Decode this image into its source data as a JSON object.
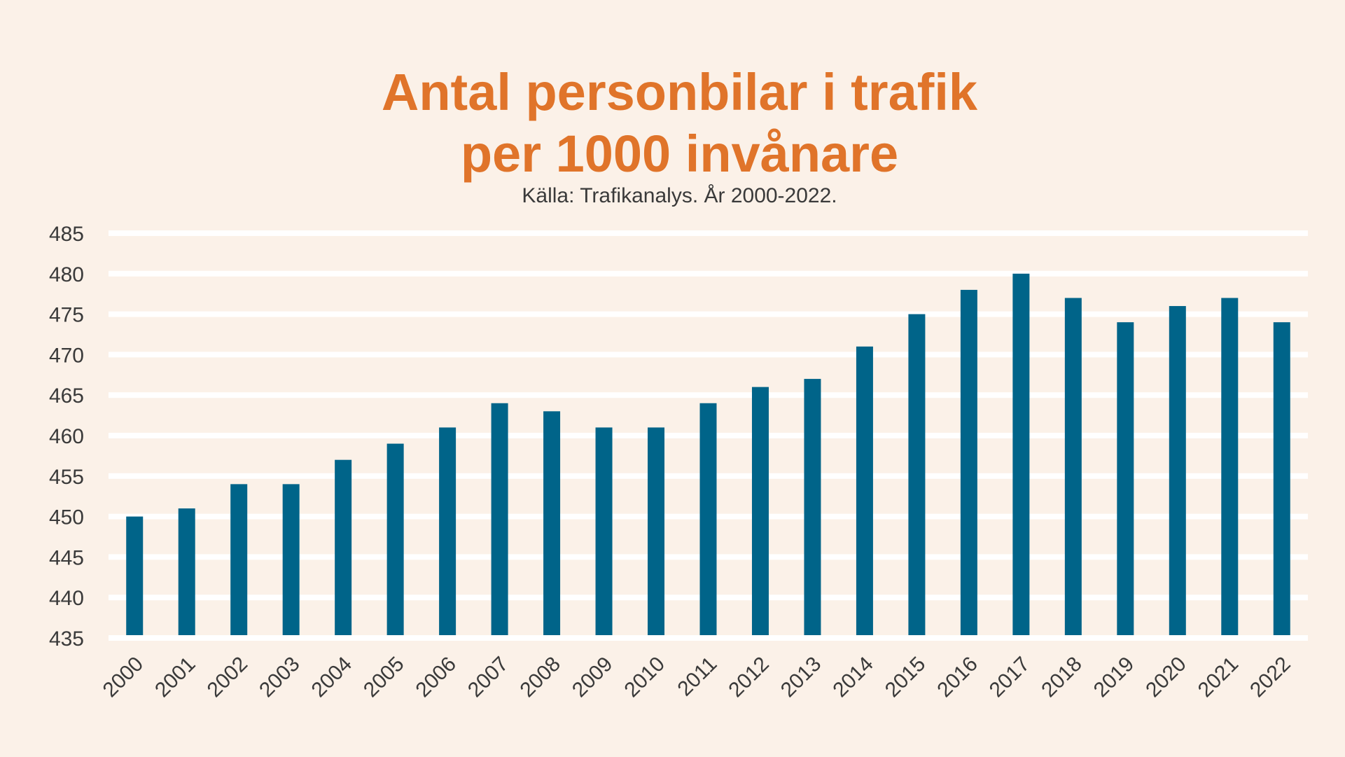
{
  "chart_data": {
    "type": "bar",
    "title_line1": "Antal personbilar i trafik",
    "title_line2": "per 1000 invånare",
    "subtitle": "Källa: Trafikanalys. År 2000-2022.",
    "categories": [
      "2000",
      "2001",
      "2002",
      "2003",
      "2004",
      "2005",
      "2006",
      "2007",
      "2008",
      "2009",
      "2010",
      "2011",
      "2012",
      "2013",
      "2014",
      "2015",
      "2016",
      "2017",
      "2018",
      "2019",
      "2020",
      "2021",
      "2022"
    ],
    "values": [
      450,
      451,
      454,
      454,
      457,
      459,
      461,
      464,
      463,
      461,
      461,
      464,
      466,
      467,
      471,
      475,
      478,
      480,
      477,
      474,
      476,
      477,
      474
    ],
    "ylim": [
      435,
      485
    ],
    "yticks": [
      435,
      440,
      445,
      450,
      455,
      460,
      465,
      470,
      475,
      480,
      485
    ],
    "grid": true,
    "legend": "none",
    "xlabel": "",
    "ylabel": "",
    "colors": {
      "bar": "#006489",
      "title": "#e0742a",
      "background": "#fbf1e8",
      "grid": "#ffffff"
    }
  }
}
